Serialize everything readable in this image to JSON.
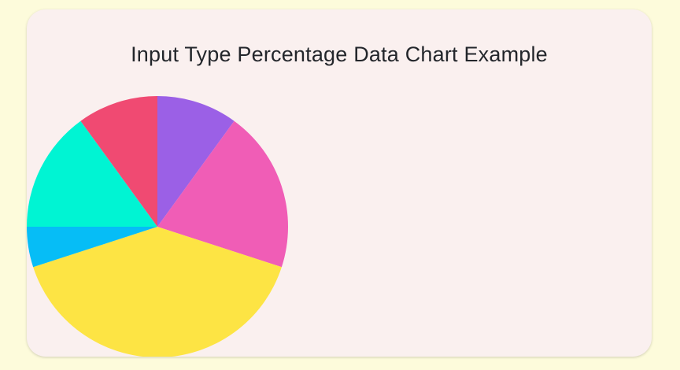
{
  "chart_data": {
    "type": "pie",
    "title": "Input Type Percentage Data Chart Example",
    "start_angle": "top",
    "direction": "clockwise",
    "categories": [
      "",
      "",
      "",
      "",
      "",
      ""
    ],
    "values": [
      10,
      20,
      40,
      5,
      15,
      10
    ],
    "colors": [
      "#9b60e6",
      "#f05db6",
      "#fde444",
      "#06bdf6",
      "#00f4d3",
      "#f04a72"
    ]
  }
}
